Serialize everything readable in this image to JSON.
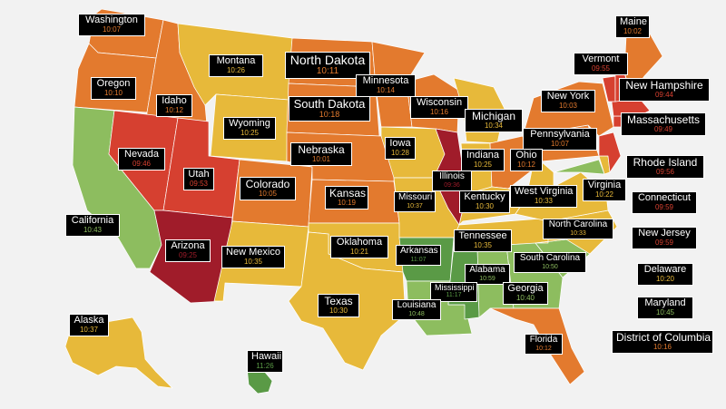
{
  "colors": {
    "background": "#f2f2f2",
    "dark_red": "#a01c2a",
    "red": "#d64030",
    "orange": "#e37a2e",
    "yellow": "#e7b93a",
    "light_green": "#8dbd5f",
    "green": "#5a9a46",
    "label_bg": "#000000",
    "label_text": "#ffffff"
  },
  "states": [
    {
      "key": "washington",
      "name": "Washington",
      "time": "10:07",
      "tcolor": "#e37a2e",
      "color": "#e37a2e"
    },
    {
      "key": "maine",
      "name": "Maine",
      "time": "10:02",
      "tcolor": "#e37a2e",
      "color": "#e37a2e"
    },
    {
      "key": "montana",
      "name": "Montana",
      "time": "10:26",
      "tcolor": "#e7b93a",
      "color": "#e7b93a"
    },
    {
      "key": "north_dakota",
      "name": "North Dakota",
      "time": "10:11",
      "tcolor": "#e37a2e",
      "color": "#e37a2e"
    },
    {
      "key": "vermont",
      "name": "Vermont",
      "time": "09:55",
      "tcolor": "#d64030",
      "color": "#d64030"
    },
    {
      "key": "oregon",
      "name": "Oregon",
      "time": "10:10",
      "tcolor": "#e37a2e",
      "color": "#e37a2e"
    },
    {
      "key": "minnesota",
      "name": "Minnesota",
      "time": "10:14",
      "tcolor": "#e37a2e",
      "color": "#e37a2e"
    },
    {
      "key": "new_hampshire",
      "name": "New Hampshire",
      "time": "09:44",
      "tcolor": "#d64030",
      "color": "#d64030"
    },
    {
      "key": "new_york",
      "name": "New York",
      "time": "10:03",
      "tcolor": "#e37a2e",
      "color": "#e37a2e"
    },
    {
      "key": "idaho",
      "name": "Idaho",
      "time": "10:12",
      "tcolor": "#e37a2e",
      "color": "#e37a2e"
    },
    {
      "key": "south_dakota",
      "name": "South Dakota",
      "time": "10:18",
      "tcolor": "#e37a2e",
      "color": "#e37a2e"
    },
    {
      "key": "wisconsin",
      "name": "Wisconsin",
      "time": "10:16",
      "tcolor": "#e37a2e",
      "color": "#e37a2e"
    },
    {
      "key": "massachusetts",
      "name": "Massachusetts",
      "time": "09:49",
      "tcolor": "#d64030",
      "color": "#d64030"
    },
    {
      "key": "wyoming",
      "name": "Wyoming",
      "time": "10:25",
      "tcolor": "#e7b93a",
      "color": "#e7b93a"
    },
    {
      "key": "michigan",
      "name": "Michigan",
      "time": "10:34",
      "tcolor": "#e7b93a",
      "color": "#e7b93a"
    },
    {
      "key": "pennsylvania",
      "name": "Pennsylvania",
      "time": "10:07",
      "tcolor": "#e37a2e",
      "color": "#e37a2e"
    },
    {
      "key": "iowa",
      "name": "Iowa",
      "time": "10:28",
      "tcolor": "#e7b93a",
      "color": "#e7b93a"
    },
    {
      "key": "nevada",
      "name": "Nevada",
      "time": "09:46",
      "tcolor": "#d64030",
      "color": "#d64030"
    },
    {
      "key": "nebraska",
      "name": "Nebraska",
      "time": "10:01",
      "tcolor": "#e37a2e",
      "color": "#e37a2e"
    },
    {
      "key": "indiana",
      "name": "Indiana",
      "time": "10:25",
      "tcolor": "#e7b93a",
      "color": "#e7b93a"
    },
    {
      "key": "ohio",
      "name": "Ohio",
      "time": "10:12",
      "tcolor": "#e37a2e",
      "color": "#e37a2e"
    },
    {
      "key": "rhode_island",
      "name": "Rhode Island",
      "time": "09:56",
      "tcolor": "#d64030",
      "color": "#d64030"
    },
    {
      "key": "utah",
      "name": "Utah",
      "time": "09:53",
      "tcolor": "#d64030",
      "color": "#d64030"
    },
    {
      "key": "illinois",
      "name": "Illinois",
      "time": "09:36",
      "tcolor": "#a01c2a",
      "color": "#a01c2a"
    },
    {
      "key": "colorado",
      "name": "Colorado",
      "time": "10:05",
      "tcolor": "#e37a2e",
      "color": "#e37a2e"
    },
    {
      "key": "kansas",
      "name": "Kansas",
      "time": "10:19",
      "tcolor": "#e37a2e",
      "color": "#e37a2e"
    },
    {
      "key": "west_virginia",
      "name": "West Virginia",
      "time": "10:33",
      "tcolor": "#e7b93a",
      "color": "#e7b93a"
    },
    {
      "key": "virginia",
      "name": "Virginia",
      "time": "10:22",
      "tcolor": "#e7b93a",
      "color": "#e7b93a"
    },
    {
      "key": "connecticut",
      "name": "Connecticut",
      "time": "09:59",
      "tcolor": "#d64030",
      "color": "#d64030"
    },
    {
      "key": "missouri",
      "name": "Missouri",
      "time": "10:37",
      "tcolor": "#e7b93a",
      "color": "#e7b93a"
    },
    {
      "key": "kentucky",
      "name": "Kentucky",
      "time": "10:30",
      "tcolor": "#e7b93a",
      "color": "#e7b93a"
    },
    {
      "key": "california",
      "name": "California",
      "time": "10:43",
      "tcolor": "#8dbd5f",
      "color": "#8dbd5f"
    },
    {
      "key": "north_carolina",
      "name": "North Carolina",
      "time": "10:33",
      "tcolor": "#e7b93a",
      "color": "#e7b93a"
    },
    {
      "key": "new_jersey",
      "name": "New Jersey",
      "time": "09:59",
      "tcolor": "#d64030",
      "color": "#d64030"
    },
    {
      "key": "arizona",
      "name": "Arizona",
      "time": "09:25",
      "tcolor": "#a01c2a",
      "color": "#a01c2a"
    },
    {
      "key": "new_mexico",
      "name": "New Mexico",
      "time": "10:35",
      "tcolor": "#e7b93a",
      "color": "#e7b93a"
    },
    {
      "key": "oklahoma",
      "name": "Oklahoma",
      "time": "10:21",
      "tcolor": "#e7b93a",
      "color": "#e7b93a"
    },
    {
      "key": "arkansas",
      "name": "Arkansas",
      "time": "11:07",
      "tcolor": "#5a9a46",
      "color": "#5a9a46"
    },
    {
      "key": "tennessee",
      "name": "Tennessee",
      "time": "10:35",
      "tcolor": "#e7b93a",
      "color": "#e7b93a"
    },
    {
      "key": "south_carolina",
      "name": "South Carolina",
      "time": "10:50",
      "tcolor": "#8dbd5f",
      "color": "#8dbd5f"
    },
    {
      "key": "delaware",
      "name": "Delaware",
      "time": "10:20",
      "tcolor": "#e7b93a",
      "color": "#e7b93a"
    },
    {
      "key": "alabama",
      "name": "Alabama",
      "time": "10:59",
      "tcolor": "#8dbd5f",
      "color": "#8dbd5f"
    },
    {
      "key": "mississippi",
      "name": "Mississippi",
      "time": "11:17",
      "tcolor": "#5a9a46",
      "color": "#5a9a46"
    },
    {
      "key": "texas",
      "name": "Texas",
      "time": "10:30",
      "tcolor": "#e7b93a",
      "color": "#e7b93a"
    },
    {
      "key": "georgia",
      "name": "Georgia",
      "time": "10:40",
      "tcolor": "#8dbd5f",
      "color": "#8dbd5f"
    },
    {
      "key": "maryland",
      "name": "Maryland",
      "time": "10:45",
      "tcolor": "#8dbd5f",
      "color": "#8dbd5f"
    },
    {
      "key": "louisiana",
      "name": "Louisiana",
      "time": "10:48",
      "tcolor": "#8dbd5f",
      "color": "#8dbd5f"
    },
    {
      "key": "alaska",
      "name": "Alaska",
      "time": "10:37",
      "tcolor": "#e7b93a",
      "color": "#e7b93a"
    },
    {
      "key": "district_of_columbia",
      "name": "District of Columbia",
      "time": "10:16",
      "tcolor": "#e37a2e",
      "color": "#e37a2e"
    },
    {
      "key": "florida",
      "name": "Florida",
      "time": "10:12",
      "tcolor": "#e37a2e",
      "color": "#e37a2e"
    },
    {
      "key": "hawaii",
      "name": "Hawaii",
      "time": "11:26",
      "tcolor": "#5a9a46",
      "color": "#5a9a46"
    }
  ]
}
